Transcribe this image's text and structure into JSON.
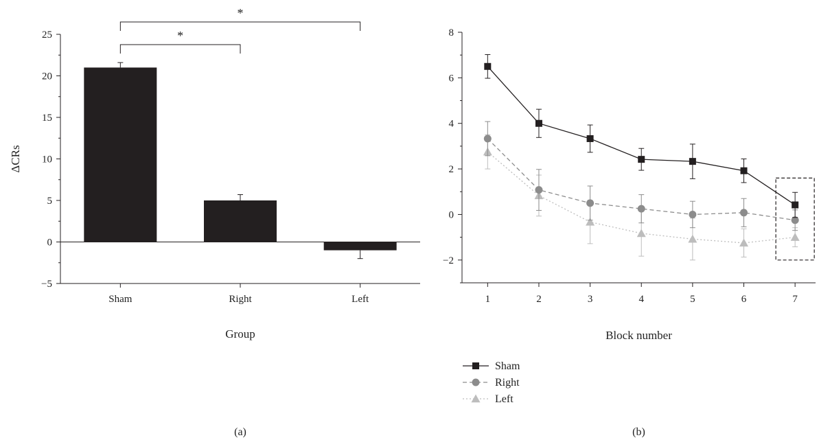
{
  "chart_data": [
    {
      "type": "bar",
      "panel_label": "(a)",
      "xlabel": "Group",
      "ylabel": "ΔCRs",
      "ylim": [
        -5,
        25
      ],
      "yticks": [
        -5,
        0,
        5,
        10,
        15,
        20,
        25
      ],
      "categories": [
        "Sham",
        "Right",
        "Left"
      ],
      "values": [
        21,
        5,
        -1
      ],
      "error": [
        0.6,
        0.7,
        1.0
      ],
      "bar_color": "#231f20",
      "significance": [
        {
          "from": "Sham",
          "to": "Right",
          "label": "*"
        },
        {
          "from": "Sham",
          "to": "Left",
          "label": "*"
        }
      ]
    },
    {
      "type": "line",
      "panel_label": "(b)",
      "xlabel": "Block number",
      "ylabel": "",
      "ylim": [
        -3,
        8
      ],
      "xlim": [
        0.5,
        7.4
      ],
      "yticks": [
        -2,
        0,
        2,
        4,
        6,
        8
      ],
      "x": [
        1,
        2,
        3,
        4,
        5,
        6,
        7
      ],
      "legend_position": "bottom-left",
      "series": [
        {
          "name": "Sham",
          "values": [
            6.5,
            4.0,
            3.33,
            2.42,
            2.33,
            1.92,
            0.42
          ],
          "error": [
            0.52,
            0.62,
            0.6,
            0.48,
            0.76,
            0.52,
            0.55
          ],
          "color": "#231f20",
          "marker": "square",
          "dash": "solid"
        },
        {
          "name": "Right",
          "values": [
            3.33,
            1.08,
            0.5,
            0.25,
            0.0,
            0.08,
            -0.25
          ],
          "error": [
            0.75,
            0.9,
            0.75,
            0.62,
            0.58,
            0.62,
            0.45
          ],
          "color": "#8c8c8c",
          "marker": "circle",
          "dash": "dashed"
        },
        {
          "name": "Left",
          "values": [
            2.75,
            0.83,
            -0.33,
            -0.83,
            -1.08,
            -1.25,
            -1.0
          ],
          "error": [
            0.75,
            0.9,
            0.95,
            1.0,
            0.92,
            0.62,
            0.42
          ],
          "color": "#bdbdbd",
          "marker": "triangle",
          "dash": "dotted"
        }
      ],
      "highlight_box": {
        "x": 7,
        "y_range": [
          -2,
          1.6
        ]
      }
    }
  ]
}
